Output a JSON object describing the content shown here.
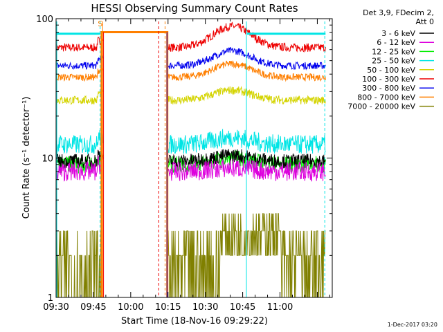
{
  "chart_data": {
    "type": "line",
    "title": "HESSI Observing Summary Count Rates",
    "xlabel": "Start Time (18-Nov-16 09:29:22)",
    "ylabel": "Count Rate (s⁻¹ detector⁻¹)",
    "yscale": "log",
    "ylim": [
      1,
      100
    ],
    "xlim_minutes": [
      9.5,
      11.35
    ],
    "x_ticks": [
      "09:30",
      "09:45",
      "10:00",
      "10:15",
      "10:30",
      "10:45",
      "11:00"
    ],
    "y_ticks": [
      "1",
      "10",
      "100"
    ],
    "grid": false,
    "legend_position": "right",
    "legend_header": [
      "Det 3,9, FDecim 2,",
      "Att 0"
    ],
    "series": [
      {
        "name": "3 - 6 keV",
        "color": "#000000"
      },
      {
        "name": "6 - 12 keV",
        "color": "#dd00dd"
      },
      {
        "name": "12 - 25 keV",
        "color": "#00ee00"
      },
      {
        "name": "25 - 50 keV",
        "color": "#00e5e5"
      },
      {
        "name": "50 - 100 keV",
        "color": "#d4d400"
      },
      {
        "name": "100 - 300 keV",
        "color": "#ee0000"
      },
      {
        "name": "300 - 800 keV",
        "color": "#0000ee"
      },
      {
        "name": "800 - 7000 keV",
        "color": "#ff7f00"
      },
      {
        "name": "7000 - 20000 keV",
        "color": "#808000"
      }
    ],
    "annotations": [
      {
        "text": "S",
        "color": "#ff7f00"
      }
    ],
    "timestamp": "1-Dec-2017 03:20"
  }
}
